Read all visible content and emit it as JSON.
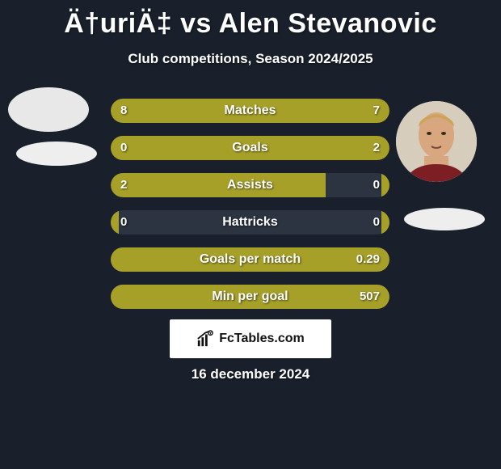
{
  "title": "Ä†uriÄ‡ vs Alen Stevanovic",
  "subtitle": "Club competitions, Season 2024/2025",
  "date": "16 december 2024",
  "footer_label": "FcTables.com",
  "colors": {
    "left": "#a6a029",
    "right": "#a6a029",
    "track": "#2c3442",
    "background": "#19202b"
  },
  "rows": [
    {
      "stat": "Matches",
      "left_val": "8",
      "right_val": "7",
      "left_pct": 53,
      "right_pct": 47
    },
    {
      "stat": "Goals",
      "left_val": "0",
      "right_val": "2",
      "left_pct": 3,
      "right_pct": 97
    },
    {
      "stat": "Assists",
      "left_val": "2",
      "right_val": "0",
      "left_pct": 77,
      "right_pct": 3
    },
    {
      "stat": "Hattricks",
      "left_val": "0",
      "right_val": "0",
      "left_pct": 3,
      "right_pct": 3
    },
    {
      "stat": "Goals per match",
      "left_val": "",
      "right_val": "0.29",
      "left_pct": 3,
      "right_pct": 97
    },
    {
      "stat": "Min per goal",
      "left_val": "",
      "right_val": "507",
      "left_pct": 3,
      "right_pct": 97
    }
  ]
}
